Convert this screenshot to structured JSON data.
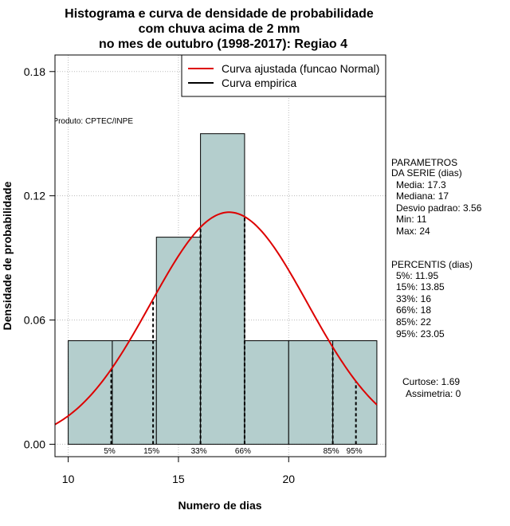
{
  "chart_data": {
    "type": "histogram",
    "title_lines": [
      "Histograma e curva de densidade de probabilidade",
      "com chuva acima de 2 mm",
      "no mes de outubro (1998-2017): Regiao 4"
    ],
    "xlabel": "Numero de dias",
    "ylabel": "Densidade de probabilidade",
    "xlim": [
      9.4,
      24.4
    ],
    "ylim": [
      -0.006,
      0.188
    ],
    "x_ticks": [
      10,
      15,
      20
    ],
    "y_ticks": [
      0.0,
      0.06,
      0.12,
      0.18
    ],
    "y_tick_labels": [
      "0.00",
      "0.06",
      "0.12",
      "0.18"
    ],
    "bars": [
      {
        "x0": 10,
        "x1": 12,
        "density": 0.05
      },
      {
        "x0": 12,
        "x1": 14,
        "density": 0.05
      },
      {
        "x0": 14,
        "x1": 16,
        "density": 0.1
      },
      {
        "x0": 16,
        "x1": 18,
        "density": 0.15
      },
      {
        "x0": 18,
        "x1": 20,
        "density": 0.05
      },
      {
        "x0": 20,
        "x1": 22,
        "density": 0.05
      },
      {
        "x0": 22,
        "x1": 24,
        "density": 0.05
      }
    ],
    "normal_fit": {
      "mean": 17.3,
      "sd": 3.56,
      "x_from": 9.4,
      "x_to": 24.0
    },
    "bar_color": "#b4cecd",
    "curve_color": "#dd0000",
    "percentile_lines": [
      {
        "label": "5%",
        "x": 11.95
      },
      {
        "label": "15%",
        "x": 13.85
      },
      {
        "label": "33%",
        "x": 16
      },
      {
        "label": "66%",
        "x": 18
      },
      {
        "label": "85%",
        "x": 22
      },
      {
        "label": "95%",
        "x": 23.05
      }
    ],
    "legend": [
      {
        "label": "Curva ajustada (funcao Normal)",
        "color": "#dd0000"
      },
      {
        "label": "Curva empirica",
        "color": "#000000"
      }
    ],
    "legend_position": "top-right",
    "grid": true,
    "source_note": "Produto: CPTEC/INPE",
    "parameters": {
      "header": [
        "PARAMETROS",
        "DA SERIE (dias)"
      ],
      "items": [
        "Media: 17.3",
        "Mediana: 17",
        "Desvio padrao: 3.56",
        "Min: 11",
        "Max: 24"
      ]
    },
    "percentis": {
      "header": "PERCENTIS (dias)",
      "items": [
        "5%: 11.95",
        "15%: 13.85",
        "33%: 16",
        "66%: 18",
        "85%: 22",
        "95%: 23.05"
      ]
    },
    "shape_stats": [
      "Curtose: 1.69",
      "Assimetria: 0"
    ]
  }
}
